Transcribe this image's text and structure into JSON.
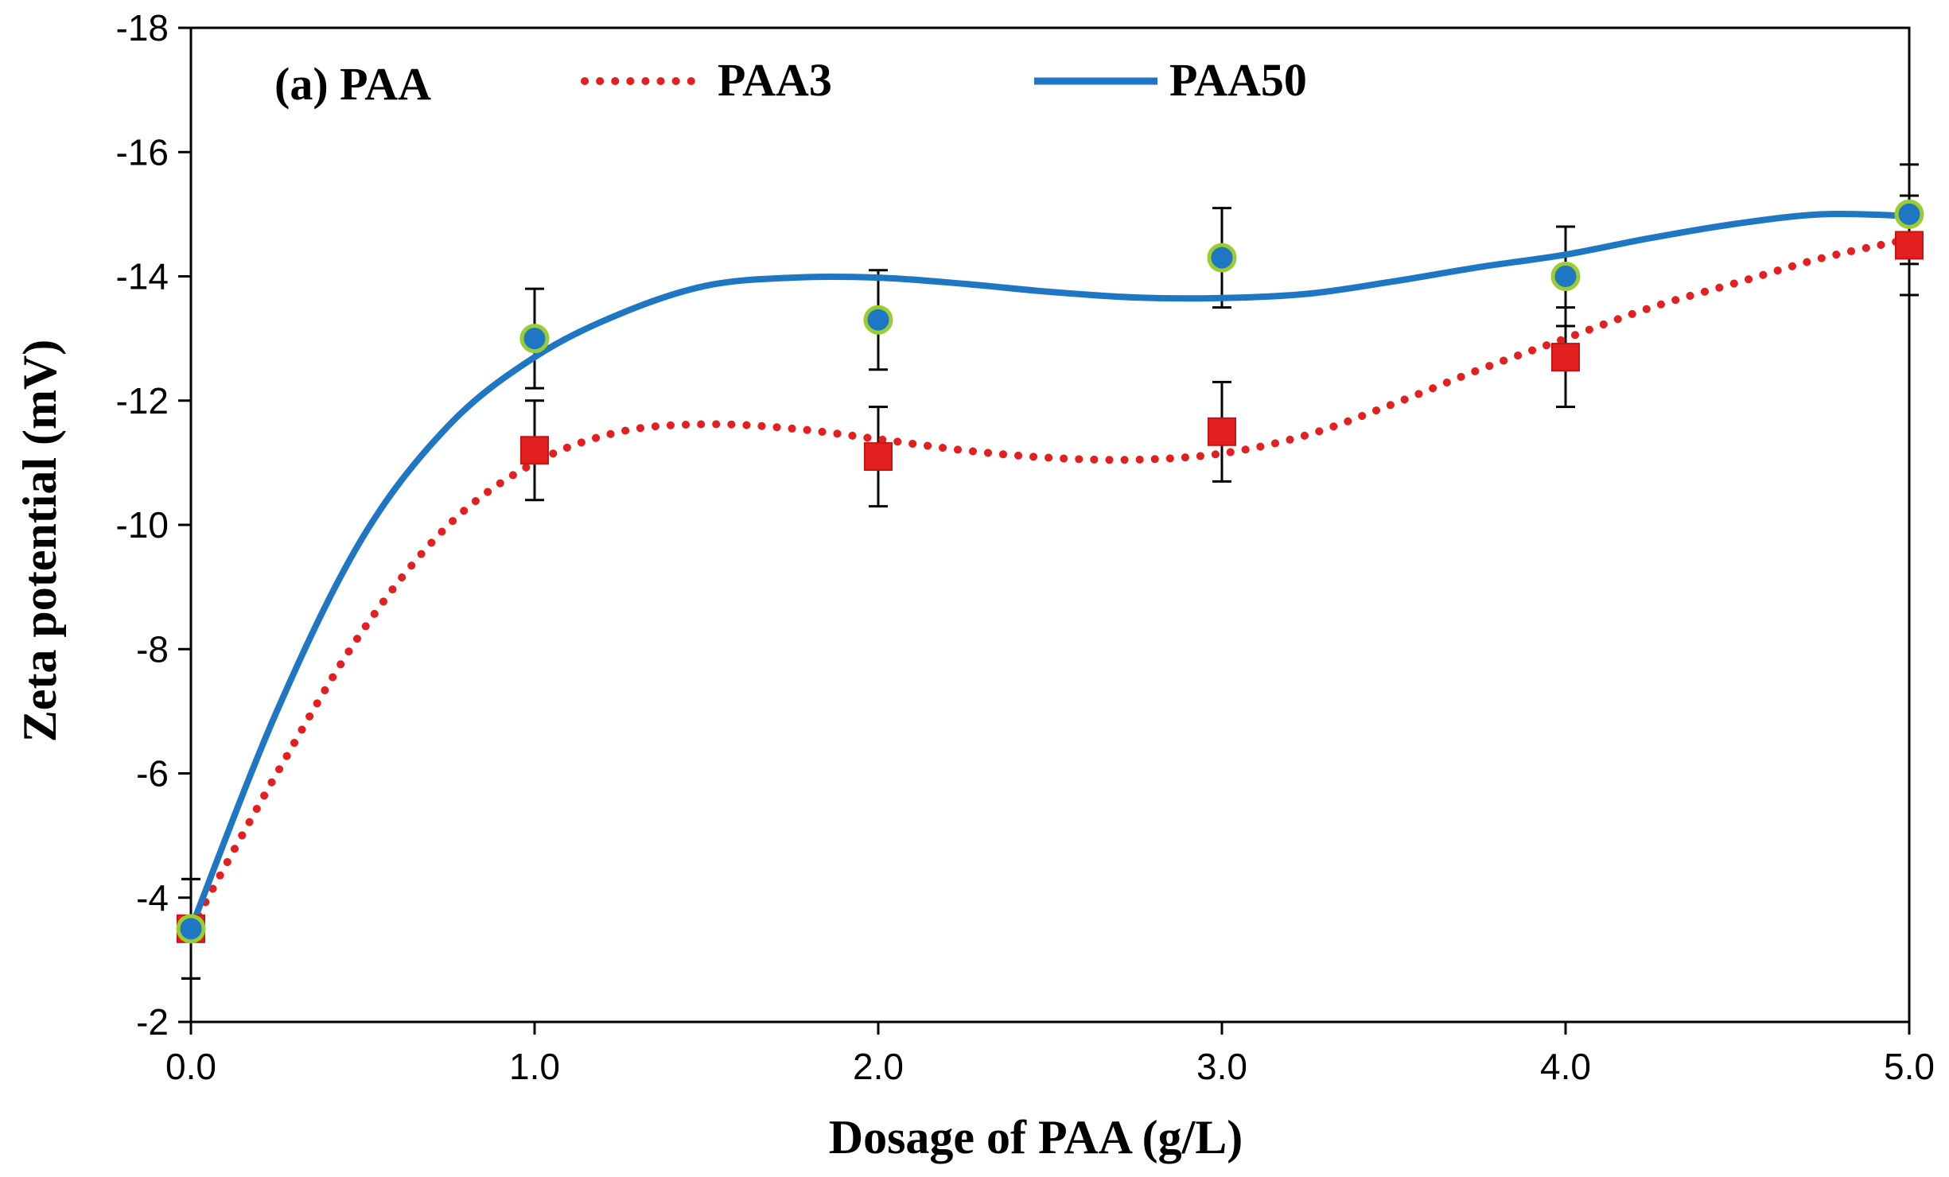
{
  "chart_data": {
    "type": "line",
    "title": "",
    "panel_label": "(a) PAA",
    "xlabel": "Dosage of PAA (g/L)",
    "ylabel": "Zeta potential (mV)",
    "x": [
      0,
      1,
      2,
      3,
      4,
      5
    ],
    "xlim": [
      0,
      5
    ],
    "ylim": [
      -2,
      -18
    ],
    "y_inverted": true,
    "x_ticks": [
      0,
      1,
      2,
      3,
      4,
      5
    ],
    "x_tick_labels": [
      "0.0",
      "1.0",
      "2.0",
      "3.0",
      "4.0",
      "5.0"
    ],
    "y_ticks": [
      -2,
      -4,
      -6,
      -8,
      -10,
      -12,
      -14,
      -16,
      -18
    ],
    "y_tick_labels": [
      "-2",
      "-4",
      "-6",
      "-8",
      "-10",
      "-12",
      "-14",
      "-16",
      "-18"
    ],
    "grid": false,
    "legend_position": "top",
    "series": [
      {
        "name": "PAA3",
        "line_style": "dotted",
        "color": "#e41f1f",
        "marker": "square",
        "marker_color": "#e41f1f",
        "values": [
          -3.5,
          -11.2,
          -11.1,
          -11.5,
          -12.7,
          -14.5
        ],
        "error": [
          0.8,
          0.8,
          0.8,
          0.8,
          0.8,
          0.8
        ],
        "trend": [
          [
            0,
            -3.5
          ],
          [
            0.25,
            -6.0
          ],
          [
            0.5,
            -8.3
          ],
          [
            0.75,
            -10.0
          ],
          [
            1.0,
            -11.0
          ],
          [
            1.25,
            -11.5
          ],
          [
            1.5,
            -11.62
          ],
          [
            1.75,
            -11.55
          ],
          [
            2.0,
            -11.38
          ],
          [
            2.25,
            -11.2
          ],
          [
            2.5,
            -11.08
          ],
          [
            2.75,
            -11.05
          ],
          [
            3.0,
            -11.15
          ],
          [
            3.25,
            -11.45
          ],
          [
            3.5,
            -11.95
          ],
          [
            3.75,
            -12.5
          ],
          [
            4.0,
            -13.0
          ],
          [
            4.25,
            -13.5
          ],
          [
            4.5,
            -13.9
          ],
          [
            4.75,
            -14.3
          ],
          [
            5.0,
            -14.6
          ]
        ]
      },
      {
        "name": "PAA50",
        "line_style": "solid",
        "color": "#1f77c4",
        "marker": "circle",
        "marker_color": "#1f77c4",
        "marker_edge": "#9acd32",
        "values": [
          -3.5,
          -13.0,
          -13.3,
          -14.3,
          -14.0,
          -15.0
        ],
        "error": [
          0.8,
          0.8,
          0.8,
          0.8,
          0.8,
          0.8
        ],
        "trend": [
          [
            0,
            -3.5
          ],
          [
            0.25,
            -7.0
          ],
          [
            0.5,
            -9.8
          ],
          [
            0.75,
            -11.6
          ],
          [
            1.0,
            -12.7
          ],
          [
            1.25,
            -13.4
          ],
          [
            1.5,
            -13.85
          ],
          [
            1.75,
            -13.98
          ],
          [
            2.0,
            -13.98
          ],
          [
            2.25,
            -13.88
          ],
          [
            2.5,
            -13.75
          ],
          [
            2.75,
            -13.66
          ],
          [
            3.0,
            -13.65
          ],
          [
            3.25,
            -13.72
          ],
          [
            3.5,
            -13.92
          ],
          [
            3.75,
            -14.15
          ],
          [
            4.0,
            -14.35
          ],
          [
            4.25,
            -14.62
          ],
          [
            4.5,
            -14.85
          ],
          [
            4.75,
            -15.0
          ],
          [
            5.0,
            -14.97
          ]
        ]
      }
    ]
  }
}
